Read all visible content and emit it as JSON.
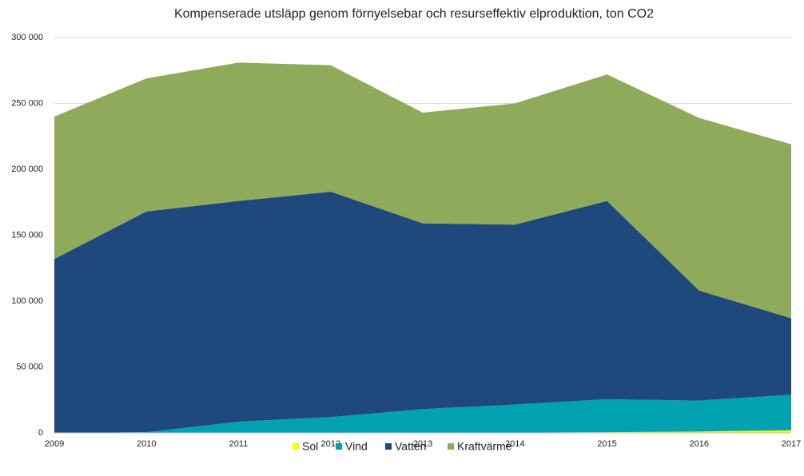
{
  "chart_data": {
    "type": "stacked_area",
    "title": "Kompenserade utsläpp genom förnyelsebar och resurseffektiv elproduktion, ton CO2",
    "categories": [
      "2009",
      "2010",
      "2011",
      "2012",
      "2013",
      "2014",
      "2015",
      "2016",
      "2017"
    ],
    "series": [
      {
        "name": "Sol",
        "color": "#ffff00",
        "values": [
          0,
          0,
          0,
          0,
          0,
          200,
          500,
          1000,
          2000
        ]
      },
      {
        "name": "Vind",
        "color": "#00a2b2",
        "values": [
          0,
          500,
          8500,
          12000,
          18000,
          21300,
          25000,
          23500,
          27000
        ]
      },
      {
        "name": "Vatten",
        "color": "#1f497d",
        "values": [
          132000,
          167500,
          167500,
          171000,
          141000,
          136500,
          150500,
          83500,
          58000
        ]
      },
      {
        "name": "Kraftvärme",
        "color": "#8faa5b",
        "values": [
          108000,
          101000,
          105000,
          96000,
          84000,
          92000,
          96000,
          131000,
          132000
        ]
      }
    ],
    "ylim": [
      0,
      300000
    ],
    "yticks": [
      0,
      {
        "value": 50000,
        "label": "50 000"
      },
      {
        "value": 100000,
        "label": "100 000"
      },
      {
        "value": 150000,
        "label": "150 000"
      },
      {
        "value": 200000,
        "label": "200 000"
      },
      {
        "value": 250000,
        "label": "250 000"
      },
      {
        "value": 300000,
        "label": "300 000"
      }
    ],
    "grid": true,
    "legend": "bottom"
  }
}
